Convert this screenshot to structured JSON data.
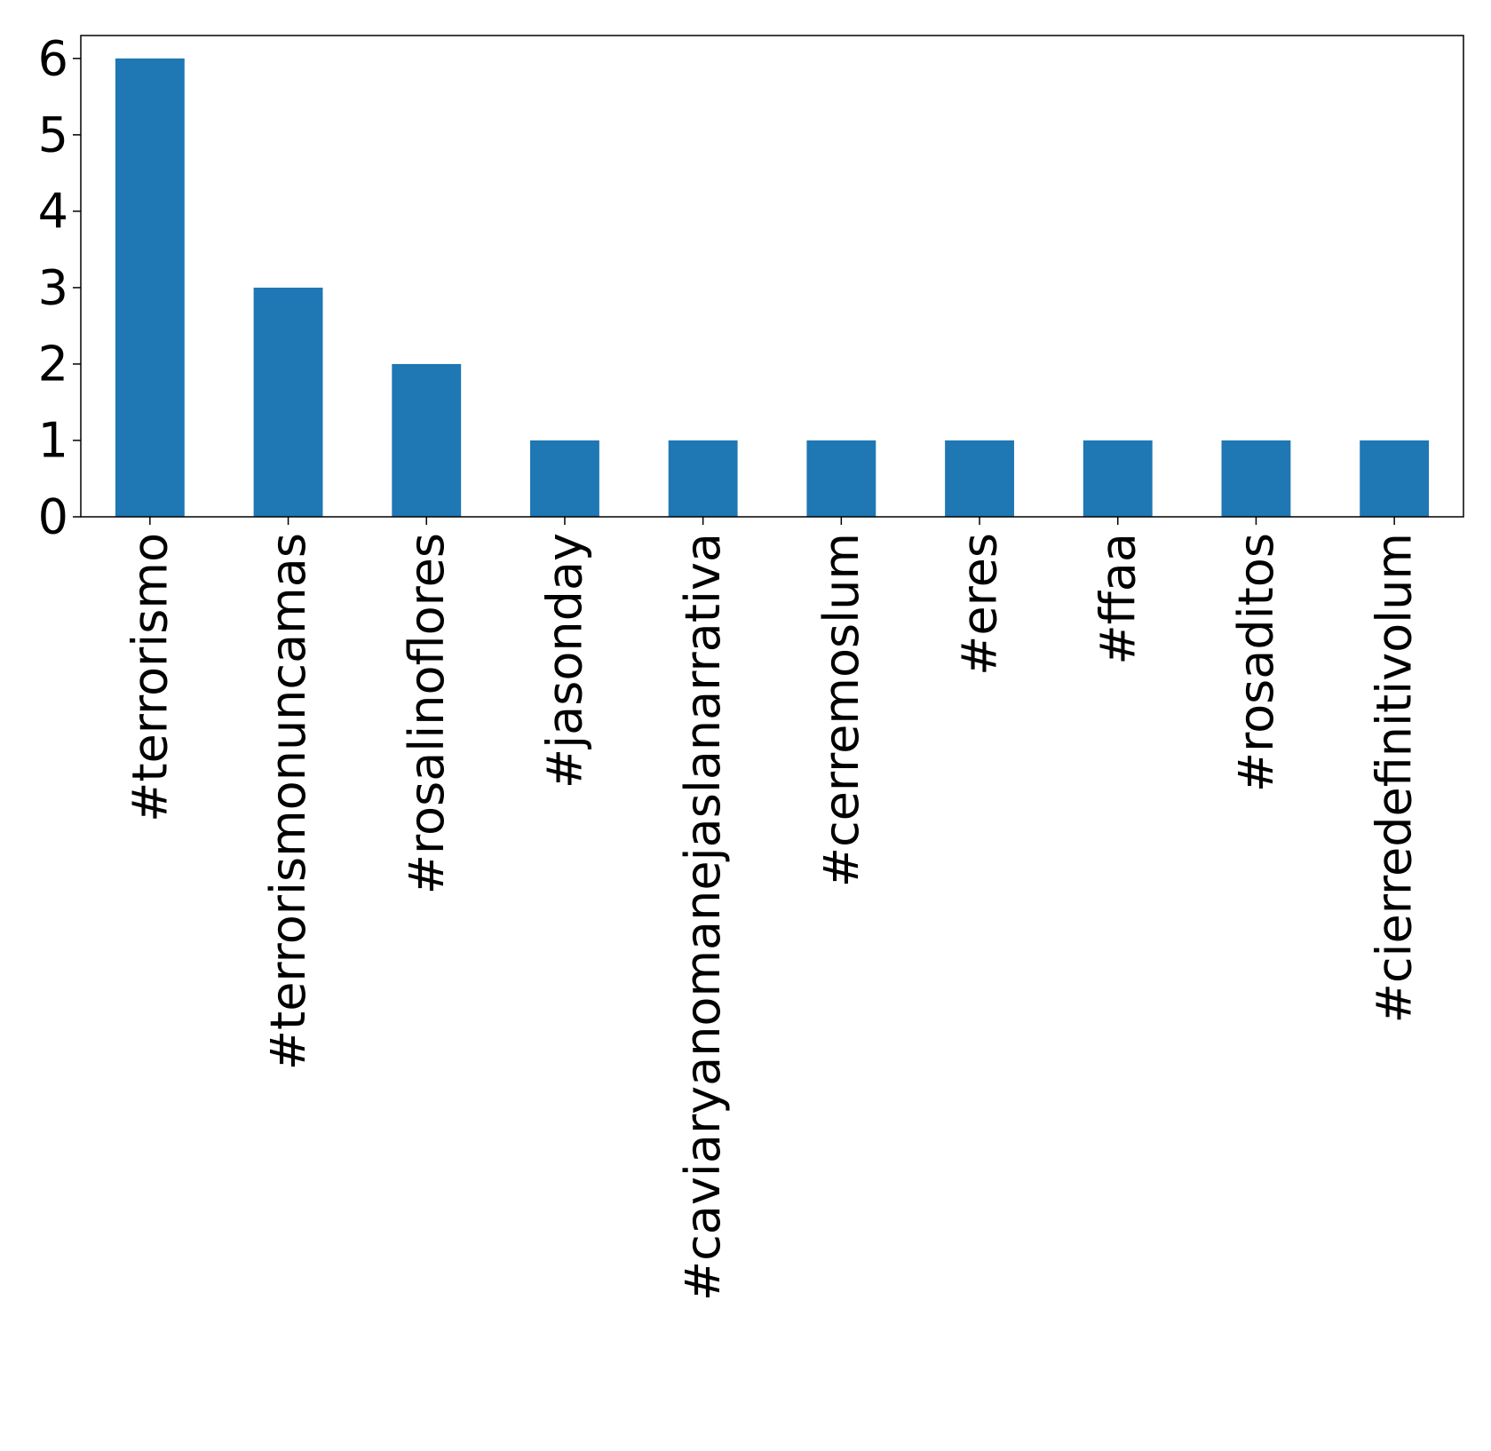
{
  "chart_data": {
    "type": "bar",
    "title": "",
    "xlabel": "",
    "ylabel": "",
    "categories": [
      "#terrorismo",
      "#terrorismonuncamas",
      "#rosalinoflores",
      "#jasonday",
      "#caviaryanomanejaslanarrativa",
      "#cerremoslum",
      "#eres",
      "#ffaa",
      "#rosaditos",
      "#cierredefinitivolum"
    ],
    "values": [
      6,
      3,
      2,
      1,
      1,
      1,
      1,
      1,
      1,
      1
    ],
    "ylim": [
      0,
      6.3
    ],
    "yticks": [
      0,
      1,
      2,
      3,
      4,
      5,
      6
    ],
    "bar_color": "#1f77b4",
    "grid": false,
    "legend": false
  }
}
